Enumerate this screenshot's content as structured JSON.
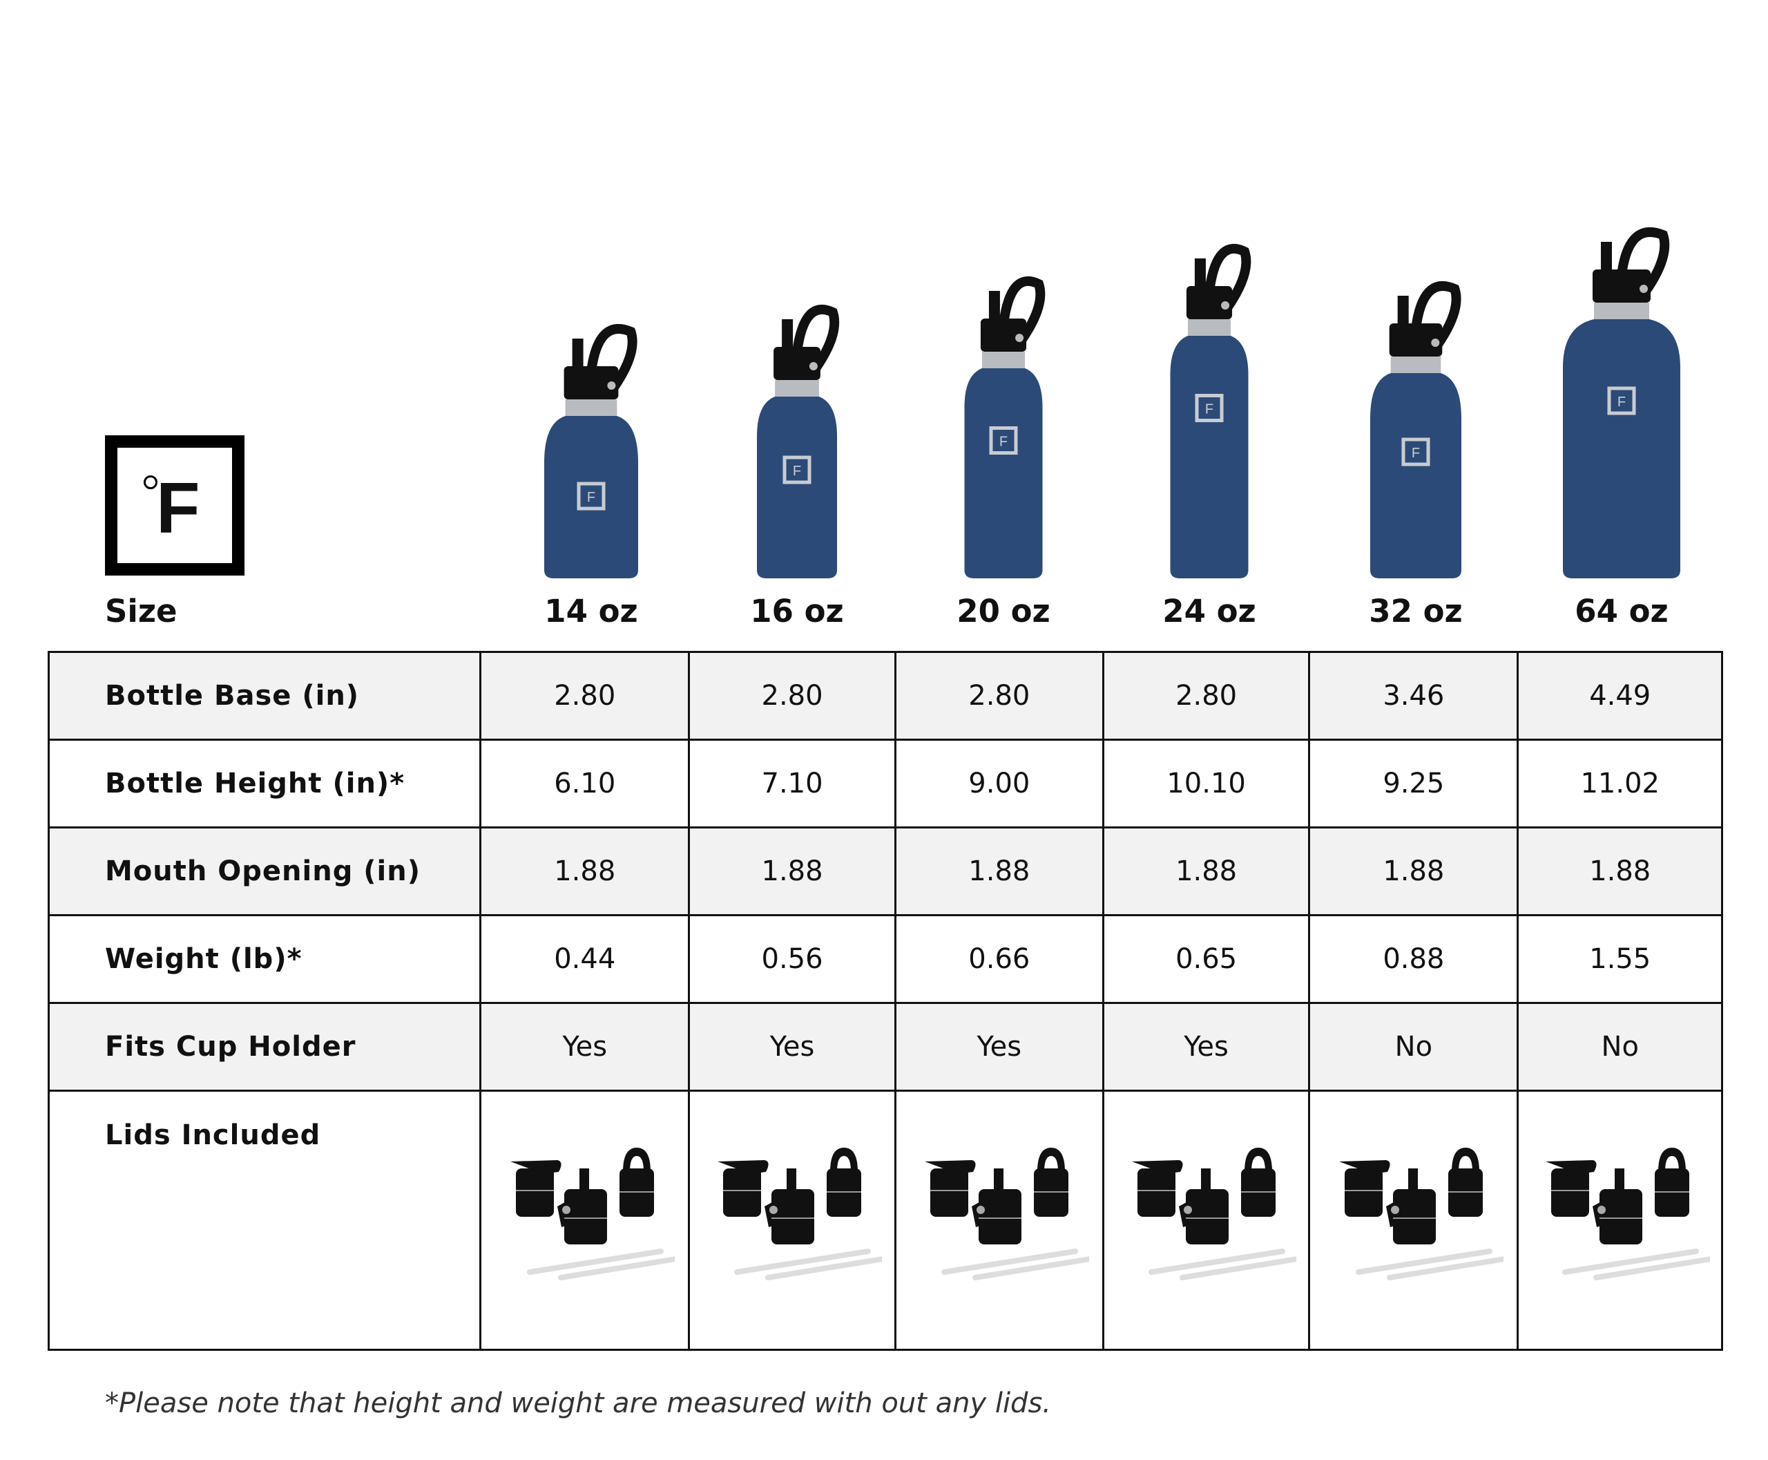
{
  "brand": {
    "logo_text": "°F"
  },
  "header": {
    "size_label": "Size",
    "sizes": [
      "14 oz",
      "16 oz",
      "20 oz",
      "24 oz",
      "32 oz",
      "64 oz"
    ]
  },
  "colors": {
    "bottle": "#2b4a78",
    "cap": "#111111",
    "band": "#b8bcc0",
    "shade_row": "#f2f2f2"
  },
  "rows": [
    {
      "label": "Bottle Base (in)",
      "values": [
        "2.80",
        "2.80",
        "2.80",
        "2.80",
        "3.46",
        "4.49"
      ]
    },
    {
      "label": "Bottle Height (in)*",
      "values": [
        "6.10",
        "7.10",
        "9.00",
        "10.10",
        "9.25",
        "11.02"
      ]
    },
    {
      "label": "Mouth Opening (in)",
      "values": [
        "1.88",
        "1.88",
        "1.88",
        "1.88",
        "1.88",
        "1.88"
      ]
    },
    {
      "label": "Weight (lb)*",
      "values": [
        "0.44",
        "0.56",
        "0.66",
        "0.65",
        "0.88",
        "1.55"
      ]
    },
    {
      "label": "Fits Cup Holder",
      "values": [
        "Yes",
        "Yes",
        "Yes",
        "Yes",
        "No",
        "No"
      ]
    }
  ],
  "lids": {
    "label": "Lids Included"
  },
  "footnote": "*Please note that height and weight are measured with out any lids."
}
